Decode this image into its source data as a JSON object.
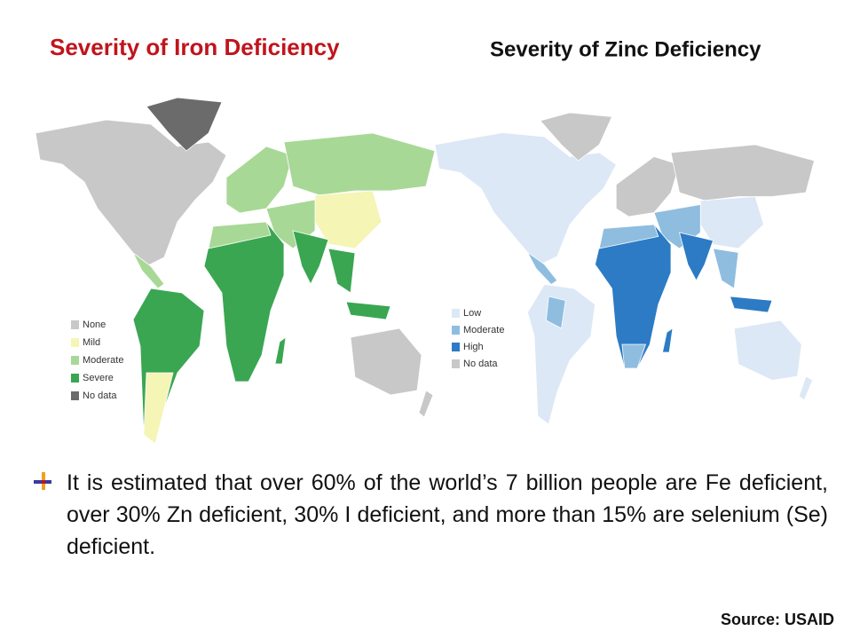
{
  "left_map": {
    "title": "Severity of Iron Deficiency",
    "legend": [
      {
        "label": "None",
        "color": "#c8c8c8"
      },
      {
        "label": "Mild",
        "color": "#f5f5b5"
      },
      {
        "label": "Moderate",
        "color": "#a8d896"
      },
      {
        "label": "Severe",
        "color": "#3aa652"
      },
      {
        "label": "No data",
        "color": "#6b6b6b"
      }
    ]
  },
  "right_map": {
    "title": "Severity of Zinc Deficiency",
    "legend": [
      {
        "label": "Low",
        "color": "#dce8f5"
      },
      {
        "label": "Moderate",
        "color": "#8fbde0"
      },
      {
        "label": "High",
        "color": "#2c7bc4"
      },
      {
        "label": "No data",
        "color": "#c8c8c8"
      }
    ]
  },
  "bullet": "It is estimated that over 60% of the world’s 7 billion people are Fe deficient, over 30% Zn deficient, 30% I deficient, and more than 15% are selenium (Se) deficient.",
  "source": "Source: USAID"
}
